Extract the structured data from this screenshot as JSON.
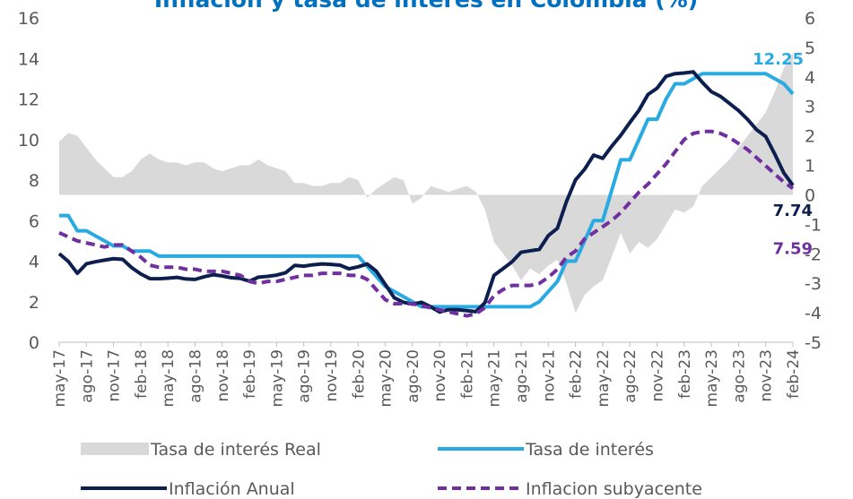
{
  "chart_data": {
    "type": "line",
    "title": "Inflación y tasa de interés en Colombia (%)",
    "categories": [
      "may-17",
      null,
      null,
      "ago-17",
      null,
      null,
      "nov-17",
      null,
      null,
      "feb-18",
      null,
      null,
      "may-18",
      null,
      null,
      "ago-18",
      null,
      null,
      "nov-18",
      null,
      null,
      "feb-19",
      null,
      null,
      "may-19",
      null,
      null,
      "ago-19",
      null,
      null,
      "nov-19",
      null,
      null,
      "feb-20",
      null,
      null,
      "may-20",
      null,
      null,
      "ago-20",
      null,
      null,
      "nov-20",
      null,
      null,
      "feb-21",
      null,
      null,
      "may-21",
      null,
      null,
      "ago-21",
      null,
      null,
      "nov-21",
      null,
      null,
      "feb-22",
      null,
      null,
      "may-22",
      null,
      null,
      "ago-22",
      null,
      null,
      "nov-22",
      null,
      null,
      "feb-23",
      null,
      null,
      "may-23",
      null,
      null,
      "ago-23",
      null,
      null,
      "nov-23",
      null,
      null,
      "feb-24"
    ],
    "ylim": [
      0,
      16
    ],
    "yticks": [
      0,
      2,
      4,
      6,
      8,
      10,
      12,
      14,
      16
    ],
    "y2lim": [
      -5,
      6
    ],
    "y2ticks": [
      -5,
      -4,
      -3,
      -2,
      -1,
      0,
      1,
      2,
      3,
      4,
      5,
      6
    ],
    "legend": "bottom",
    "series": [
      {
        "name": "Tasa de interés Real",
        "kind": "area",
        "axis": "y2",
        "color": "#d9d9d9",
        "values": [
          1.8,
          2.1,
          2.0,
          1.6,
          1.2,
          0.9,
          0.6,
          0.6,
          0.8,
          1.2,
          1.4,
          1.2,
          1.1,
          1.1,
          1.0,
          1.1,
          1.1,
          0.9,
          0.8,
          0.9,
          1.0,
          1.0,
          1.2,
          1.0,
          0.9,
          0.8,
          0.4,
          0.4,
          0.3,
          0.3,
          0.4,
          0.4,
          0.6,
          0.5,
          -0.1,
          0.2,
          0.4,
          0.6,
          0.5,
          -0.3,
          -0.1,
          0.3,
          0.2,
          0.1,
          0.2,
          0.3,
          0.1,
          -0.5,
          -1.6,
          -2.0,
          -2.4,
          -2.9,
          -2.5,
          -2.7,
          -2.4,
          -2.2,
          -3.0,
          -4.0,
          -3.4,
          -3.1,
          -2.9,
          -2.1,
          -1.3,
          -2.0,
          -1.6,
          -1.8,
          -1.5,
          -1.0,
          -0.5,
          -0.6,
          -0.4,
          0.3,
          0.6,
          0.9,
          1.2,
          1.6,
          2.0,
          2.4,
          2.8,
          3.5,
          4.3,
          4.8
        ]
      },
      {
        "name": "Tasa de interés",
        "kind": "line",
        "color": "#29abe2",
        "end_label": true,
        "values": [
          6.25,
          6.25,
          5.5,
          5.5,
          5.25,
          5.0,
          4.75,
          4.75,
          4.5,
          4.5,
          4.5,
          4.25,
          4.25,
          4.25,
          4.25,
          4.25,
          4.25,
          4.25,
          4.25,
          4.25,
          4.25,
          4.25,
          4.25,
          4.25,
          4.25,
          4.25,
          4.25,
          4.25,
          4.25,
          4.25,
          4.25,
          4.25,
          4.25,
          4.25,
          3.75,
          3.25,
          2.75,
          2.5,
          2.25,
          2.0,
          1.75,
          1.75,
          1.75,
          1.75,
          1.75,
          1.75,
          1.75,
          1.75,
          1.75,
          1.75,
          1.75,
          1.75,
          1.75,
          2.0,
          2.5,
          3.0,
          4.0,
          4.0,
          5.0,
          6.0,
          6.0,
          7.5,
          9.0,
          9.0,
          10.0,
          11.0,
          11.0,
          12.0,
          12.75,
          12.75,
          13.0,
          13.25,
          13.25,
          13.25,
          13.25,
          13.25,
          13.25,
          13.25,
          13.25,
          13.0,
          12.75,
          12.25
        ]
      },
      {
        "name": "Inflación Anual",
        "kind": "line",
        "color": "#0d1f4f",
        "end_label": true,
        "values": [
          4.37,
          3.99,
          3.4,
          3.87,
          3.97,
          4.05,
          4.12,
          4.09,
          3.68,
          3.37,
          3.14,
          3.13,
          3.16,
          3.2,
          3.12,
          3.1,
          3.23,
          3.33,
          3.27,
          3.18,
          3.15,
          3.01,
          3.21,
          3.25,
          3.31,
          3.43,
          3.79,
          3.75,
          3.82,
          3.86,
          3.84,
          3.8,
          3.62,
          3.72,
          3.86,
          3.51,
          2.85,
          2.19,
          1.97,
          1.88,
          1.97,
          1.75,
          1.49,
          1.61,
          1.6,
          1.56,
          1.51,
          1.95,
          3.3,
          3.63,
          3.97,
          4.44,
          4.51,
          4.58,
          5.26,
          5.62,
          6.94,
          8.01,
          8.53,
          9.23,
          9.07,
          9.67,
          10.21,
          10.84,
          11.44,
          12.22,
          12.53,
          13.12,
          13.25,
          13.28,
          13.34,
          12.82,
          12.36,
          12.13,
          11.78,
          11.43,
          10.99,
          10.48,
          10.15,
          9.28,
          8.35,
          7.74
        ]
      },
      {
        "name": "Inflacion subyacente",
        "kind": "line",
        "dash": true,
        "color": "#7030a0",
        "end_label": true,
        "values": [
          5.4,
          5.2,
          5.0,
          4.9,
          4.8,
          4.7,
          4.8,
          4.8,
          4.5,
          4.2,
          3.8,
          3.7,
          3.7,
          3.7,
          3.6,
          3.6,
          3.5,
          3.5,
          3.5,
          3.4,
          3.3,
          3.0,
          2.9,
          3.0,
          3.0,
          3.1,
          3.2,
          3.3,
          3.3,
          3.4,
          3.4,
          3.4,
          3.3,
          3.3,
          3.1,
          2.6,
          2.1,
          1.9,
          1.9,
          1.9,
          1.8,
          1.7,
          1.6,
          1.5,
          1.4,
          1.3,
          1.4,
          1.7,
          2.3,
          2.6,
          2.8,
          2.8,
          2.8,
          2.9,
          3.2,
          3.6,
          4.2,
          4.5,
          5.1,
          5.4,
          5.7,
          6.0,
          6.4,
          6.9,
          7.4,
          7.8,
          8.3,
          8.8,
          9.4,
          10.0,
          10.3,
          10.4,
          10.4,
          10.3,
          10.1,
          9.8,
          9.5,
          9.1,
          8.7,
          8.3,
          7.9,
          7.59
        ]
      }
    ]
  }
}
